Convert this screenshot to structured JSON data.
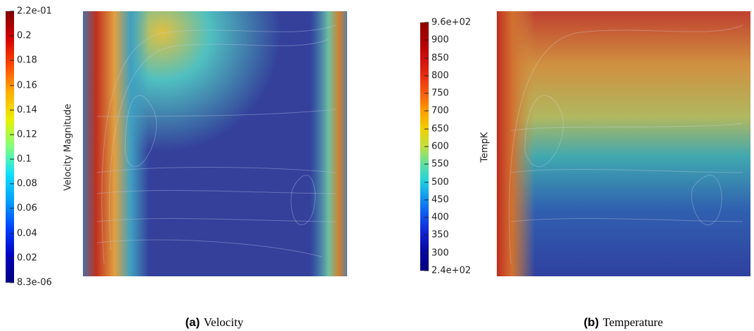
{
  "panels": [
    {
      "colorbar": {
        "label": "Velocity Magnitude",
        "ticks": [
          "2.2e-01",
          "0.2",
          "0.18",
          "0.16",
          "0.14",
          "0.12",
          "0.1",
          "0.08",
          "0.06",
          "0.04",
          "0.02",
          "8.3e-06"
        ]
      },
      "caption": {
        "label": "(a)",
        "text": "Velocity"
      }
    },
    {
      "colorbar": {
        "label": "TempK",
        "ticks": [
          "9.6e+02",
          "900",
          "850",
          "800",
          "750",
          "700",
          "650",
          "600",
          "550",
          "500",
          "450",
          "400",
          "350",
          "300",
          "2.4e+02"
        ]
      },
      "caption": {
        "label": "(b)",
        "text": "Temperature"
      }
    }
  ]
}
